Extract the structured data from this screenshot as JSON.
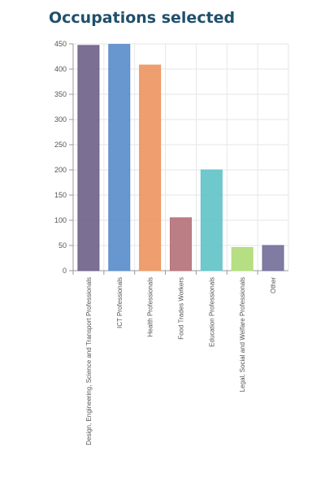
{
  "chart_data": {
    "type": "bar",
    "title": "Occupations selected",
    "xlabel": "",
    "ylabel": "",
    "categories": [
      "Design, Engineering, Science and Transport Professionals",
      "ICT Professionals",
      "Health Professionals",
      "Food Trades Workers",
      "Education Professionals",
      "Legal, Social and Welfare Professionals",
      "Other"
    ],
    "values": [
      447,
      449,
      408,
      105,
      200,
      46,
      50
    ],
    "colors": [
      "#70638a",
      "#5b8dcb",
      "#ee9663",
      "#b57379",
      "#63c4c8",
      "#b0dc78",
      "#74709a"
    ],
    "ylim": [
      0,
      450
    ],
    "yticks": [
      0,
      50,
      100,
      150,
      200,
      250,
      300,
      350,
      400,
      450
    ],
    "grid": true,
    "legend": "none"
  }
}
